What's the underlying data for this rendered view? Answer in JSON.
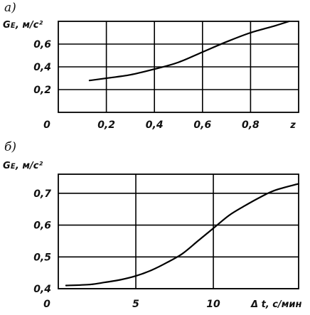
{
  "chart_data": [
    {
      "type": "line",
      "panel_label": "а)",
      "ylabel": "Gᴇ, м/с²",
      "xlabel": "z",
      "origin_label": "0",
      "xlim": [
        0,
        1.0
      ],
      "ylim": [
        0,
        0.8
      ],
      "xticks": [
        "0,2",
        "0,4",
        "0,6",
        "0,8"
      ],
      "xtick_values": [
        0.2,
        0.4,
        0.6,
        0.8
      ],
      "yticks": [
        "0,2",
        "0,4",
        "0,6"
      ],
      "ytick_values": [
        0.2,
        0.4,
        0.6
      ],
      "grid": true,
      "series": [
        {
          "x": [
            0.13,
            0.2,
            0.3,
            0.4,
            0.5,
            0.6,
            0.7,
            0.8,
            0.9,
            0.96
          ],
          "y": [
            0.28,
            0.3,
            0.33,
            0.38,
            0.44,
            0.53,
            0.62,
            0.7,
            0.76,
            0.8
          ]
        }
      ]
    },
    {
      "type": "line",
      "panel_label": "б)",
      "ylabel": "Gᴇ, м/с²",
      "xlabel": "Δ t, с/мин",
      "origin_label": "0",
      "xlim": [
        0,
        15.5
      ],
      "ylim": [
        0.4,
        0.76
      ],
      "xticks": [
        "5",
        "10"
      ],
      "xtick_values": [
        5,
        10
      ],
      "yticks": [
        "0,4",
        "0,5",
        "0,6",
        "0,7"
      ],
      "ytick_values": [
        0.4,
        0.5,
        0.6,
        0.7
      ],
      "grid": true,
      "series": [
        {
          "x": [
            0.5,
            2,
            3,
            4,
            5,
            6,
            7,
            8,
            9,
            10,
            11,
            12,
            13,
            14,
            15.5
          ],
          "y": [
            0.41,
            0.413,
            0.42,
            0.428,
            0.44,
            0.458,
            0.482,
            0.51,
            0.55,
            0.59,
            0.63,
            0.66,
            0.687,
            0.71,
            0.73
          ]
        }
      ]
    }
  ]
}
